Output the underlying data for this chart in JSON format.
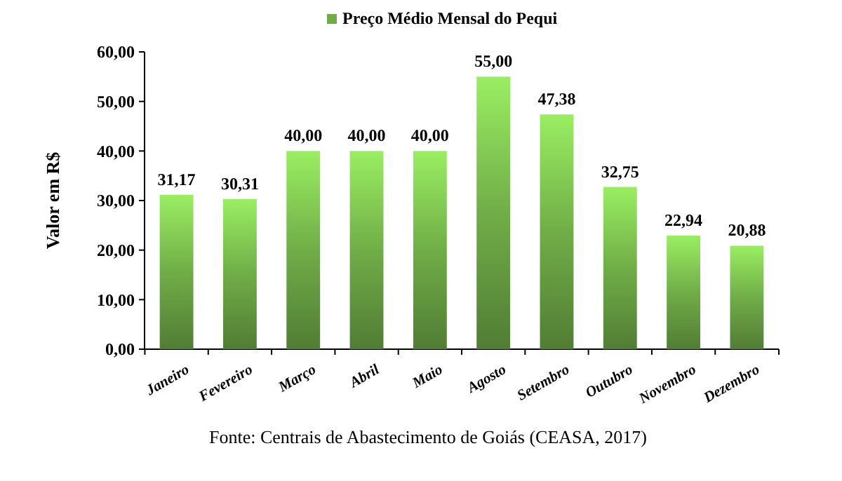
{
  "chart_data": {
    "type": "bar",
    "ylabel": "Valor em R$",
    "categories": [
      "Janeiro",
      "Fevereiro",
      "Março",
      "Abril",
      "Maio",
      "Agosto",
      "Setembro",
      "Outubro",
      "Novembro",
      "Dezembro"
    ],
    "series": [
      {
        "name": "Preço Médio Mensal do Pequi",
        "color": "#70ad47",
        "values": [
          31.17,
          30.31,
          40,
          40,
          40,
          55,
          47.38,
          32.75,
          22.94,
          20.88
        ],
        "value_labels": [
          "31,17",
          "30,31",
          "40,00",
          "40,00",
          "40,00",
          "55,00",
          "47,38",
          "32,75",
          "22,94",
          "20,88"
        ]
      }
    ],
    "ylim": [
      0,
      60
    ],
    "yticks": [
      {
        "value": 0,
        "label": "0,00"
      },
      {
        "value": 10,
        "label": "10,00"
      },
      {
        "value": 20,
        "label": "20,00"
      },
      {
        "value": 30,
        "label": "30,00"
      },
      {
        "value": 40,
        "label": "40,00"
      },
      {
        "value": 50,
        "label": "50,00"
      },
      {
        "value": 60,
        "label": "60,00"
      }
    ],
    "grid": false,
    "legend": "top",
    "annotations": [
      "Fonte: Centrais de Abastecimento de Goiás (CEASA, 2017)"
    ]
  }
}
